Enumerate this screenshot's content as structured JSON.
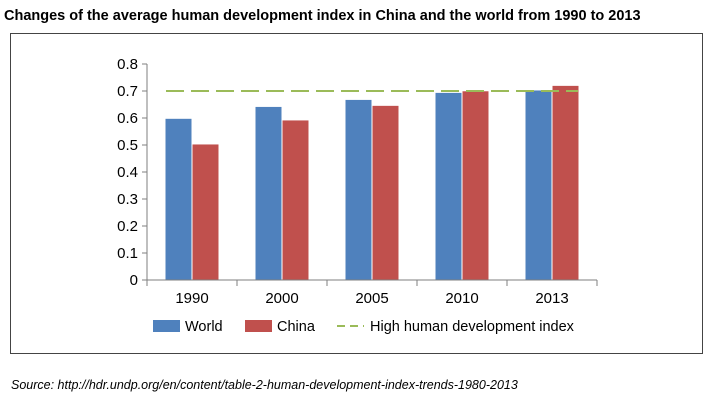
{
  "title": "Changes of the average human development index in China and the world from 1990 to 2013",
  "source": "Source:  http://hdr.undp.org/en/content/table-2-human-development-index-trends-1980-2013",
  "colors": {
    "world": "#4f81bd",
    "china": "#c0504d",
    "threshold": "#9bbb59"
  },
  "chart_data": {
    "type": "bar",
    "title": "Changes of the average human development index in China and the world from 1990 to 2013",
    "xlabel": "",
    "ylabel": "",
    "ylim": [
      0,
      0.8
    ],
    "yticks": [
      "0",
      "0.1",
      "0.2",
      "0.3",
      "0.4",
      "0.5",
      "0.6",
      "0.7",
      "0.8"
    ],
    "categories": [
      "1990",
      "2000",
      "2005",
      "2010",
      "2013"
    ],
    "series": [
      {
        "name": "World",
        "values": [
          0.597,
          0.641,
          0.667,
          0.693,
          0.702
        ]
      },
      {
        "name": "China",
        "values": [
          0.502,
          0.591,
          0.645,
          0.699,
          0.719
        ]
      }
    ],
    "reference_line": {
      "name": "High human development index",
      "value": 0.7,
      "style": "dashed"
    },
    "legend": [
      "World",
      "China",
      "High human development index"
    ],
    "legend_position": "bottom",
    "grid": false
  }
}
